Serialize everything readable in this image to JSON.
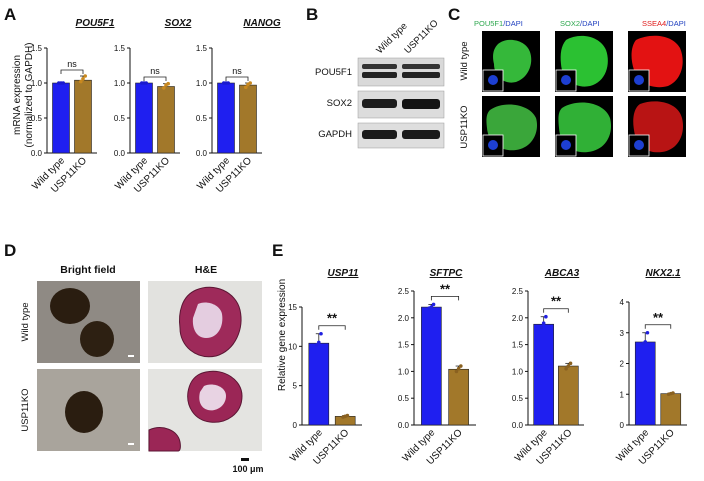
{
  "panels": {
    "A": "A",
    "B": "B",
    "C": "C",
    "D": "D",
    "E": "E"
  },
  "panelA": {
    "ylabel_line1": "mRNA expression",
    "ylabel_line2": "(normalized to GAPDH)",
    "significance": "ns"
  },
  "panelB": {
    "lanes": [
      "Wild type",
      "USP11KO"
    ],
    "bands": [
      "POU5F1",
      "SOX2",
      "GAPDH"
    ]
  },
  "panelC": {
    "columns": [
      {
        "marker": "POU5F1",
        "suffix": "/DAPI",
        "color": "#2fa84f"
      },
      {
        "marker": "SOX2",
        "suffix": "/DAPI",
        "color": "#2fa84f"
      },
      {
        "marker": "SSEA4",
        "suffix": "/DAPI",
        "color": "#e01b1b"
      }
    ],
    "rows": [
      "Wild type",
      "USP11KO"
    ]
  },
  "panelD": {
    "columns": [
      "Bright field",
      "H&E"
    ],
    "rows": [
      "Wild type",
      "USP11KO"
    ],
    "scalebar": "100 μm"
  },
  "panelE": {
    "ylabel": "Relative gene expression",
    "significance": "**"
  },
  "colors": {
    "wildtype": "#1f1ff0",
    "usp11ko": "#a2782a"
  },
  "chart_data": [
    {
      "id": "A1",
      "type": "bar",
      "title": "POU5F1",
      "categories": [
        "Wild type",
        "USP11KO"
      ],
      "values": [
        1.0,
        1.04
      ],
      "points": [
        [
          1.0,
          1.0,
          1.0
        ],
        [
          1.02,
          1.06,
          1.1
        ]
      ],
      "ylim": [
        0,
        1.5
      ],
      "yticks": [
        0,
        0.5,
        1.0,
        1.5
      ],
      "yticklabels": [
        "0.0",
        "0.5",
        "1.0",
        "1.5"
      ],
      "ylabel": "mRNA expression (normalized to GAPDH)",
      "annotation": "ns"
    },
    {
      "id": "A2",
      "type": "bar",
      "title": "SOX2",
      "categories": [
        "Wild type",
        "USP11KO"
      ],
      "values": [
        1.0,
        0.95
      ],
      "points": [
        [
          1.0,
          1.0,
          1.0
        ],
        [
          0.93,
          0.97,
          0.99
        ]
      ],
      "ylim": [
        0,
        1.5
      ],
      "yticks": [
        0,
        0.5,
        1.0,
        1.5
      ],
      "yticklabels": [
        "0.0",
        "0.5",
        "1.0",
        "1.5"
      ],
      "annotation": "ns"
    },
    {
      "id": "A3",
      "type": "bar",
      "title": "NANOG",
      "categories": [
        "Wild type",
        "USP11KO"
      ],
      "values": [
        1.0,
        0.97
      ],
      "points": [
        [
          1.0,
          1.0,
          1.0
        ],
        [
          0.94,
          0.98,
          1.0
        ]
      ],
      "ylim": [
        0,
        1.5
      ],
      "yticks": [
        0,
        0.5,
        1.0,
        1.5
      ],
      "yticklabels": [
        "0.0",
        "0.5",
        "1.0",
        "1.5"
      ],
      "annotation": "ns"
    },
    {
      "id": "E1",
      "type": "bar",
      "title": "USP11",
      "categories": [
        "Wild type",
        "USP11KO"
      ],
      "values": [
        10.4,
        1.1
      ],
      "points": [
        [
          10.2,
          10.5,
          11.6
        ],
        [
          1.0,
          1.1,
          1.2
        ]
      ],
      "ylim": [
        0,
        15
      ],
      "yticks": [
        0,
        5,
        10,
        15
      ],
      "yticklabels": [
        "0",
        "5",
        "10",
        "15"
      ],
      "ylabel": "Relative gene expression",
      "annotation": "**"
    },
    {
      "id": "E2",
      "type": "bar",
      "title": "SFTPC",
      "categories": [
        "Wild type",
        "USP11KO"
      ],
      "values": [
        2.2,
        1.04
      ],
      "points": [
        [
          2.18,
          2.2,
          2.25
        ],
        [
          1.0,
          1.05,
          1.1
        ]
      ],
      "ylim": [
        0,
        2.5
      ],
      "yticks": [
        0,
        0.5,
        1.0,
        1.5,
        2.0,
        2.5
      ],
      "yticklabels": [
        "0.0",
        "0.5",
        "1.0",
        "1.5",
        "2.0",
        "2.5"
      ],
      "annotation": "**"
    },
    {
      "id": "E3",
      "type": "bar",
      "title": "ABCA3",
      "categories": [
        "Wild type",
        "USP11KO"
      ],
      "values": [
        1.88,
        1.1
      ],
      "points": [
        [
          1.82,
          1.9,
          2.02
        ],
        [
          1.05,
          1.1,
          1.15
        ]
      ],
      "ylim": [
        0,
        2.5
      ],
      "yticks": [
        0,
        0.5,
        1.0,
        1.5,
        2.0,
        2.5
      ],
      "yticklabels": [
        "0.0",
        "0.5",
        "1.0",
        "1.5",
        "2.0",
        "2.5"
      ],
      "annotation": "**"
    },
    {
      "id": "E4",
      "type": "bar",
      "title": "NKX2.1",
      "categories": [
        "Wild type",
        "USP11KO"
      ],
      "values": [
        2.7,
        1.02
      ],
      "points": [
        [
          2.65,
          2.7,
          3.0
        ],
        [
          1.0,
          1.02,
          1.04
        ]
      ],
      "ylim": [
        0,
        4
      ],
      "yticks": [
        0,
        1,
        2,
        3,
        4
      ],
      "yticklabels": [
        "0",
        "1",
        "2",
        "3",
        "4"
      ],
      "annotation": "**"
    }
  ]
}
